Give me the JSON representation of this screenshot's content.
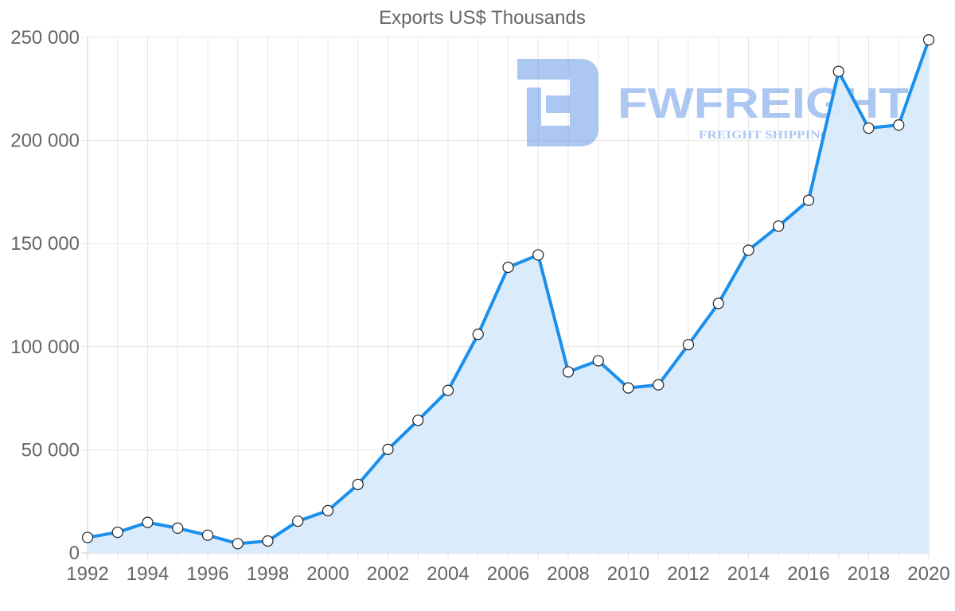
{
  "chart_data": {
    "type": "line",
    "title": "Exports US$ Thousands",
    "xlabel": "",
    "ylabel": "",
    "ylim": [
      0,
      250000
    ],
    "y_ticks": [
      {
        "value": 0,
        "label": "0"
      },
      {
        "value": 50000,
        "label": "50 000"
      },
      {
        "value": 100000,
        "label": "100 000"
      },
      {
        "value": 150000,
        "label": "150 000"
      },
      {
        "value": 200000,
        "label": "200 000"
      },
      {
        "value": 250000,
        "label": "250 000"
      }
    ],
    "x_ticks": [
      "1992",
      "1994",
      "1996",
      "1998",
      "2000",
      "2002",
      "2004",
      "2006",
      "2008",
      "2010",
      "2012",
      "2014",
      "2016",
      "2018",
      "2020"
    ],
    "grid": true,
    "area_fill": true,
    "series": [
      {
        "name": "Exports",
        "color": "#1a8fec",
        "fill_color": "#d8ebfb",
        "marker_fill": "#ffffff",
        "marker_stroke": "#222222",
        "x": [
          1992,
          1993,
          1994,
          1995,
          1996,
          1997,
          1998,
          1999,
          2000,
          2001,
          2002,
          2003,
          2004,
          2005,
          2006,
          2007,
          2008,
          2009,
          2010,
          2011,
          2012,
          2013,
          2014,
          2015,
          2016,
          2017,
          2018,
          2019,
          2020
        ],
        "values": [
          7500,
          10000,
          14800,
          12000,
          8600,
          4500,
          5800,
          15400,
          20500,
          33200,
          50200,
          64300,
          78800,
          106000,
          138500,
          144500,
          87800,
          93200,
          80000,
          81500,
          101000,
          121000,
          146800,
          158500,
          171000,
          233500,
          206000,
          207500,
          248800
        ]
      }
    ]
  },
  "watermark": {
    "brand": "FWFREIGHT",
    "tagline": "FREIGHT SHIPPING",
    "color": "#6a9ae8"
  }
}
